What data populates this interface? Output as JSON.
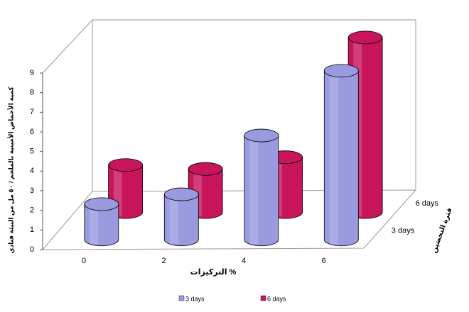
{
  "chart_data": {
    "type": "bar3d",
    "y_label": "كمية الأحماض الأمينية بالملجم / ٥٠ مل من البيئة فنادي",
    "x_label": "التركيزات %",
    "z_label": "فترة التحضين",
    "categories": [
      "0",
      "2",
      "4",
      "6"
    ],
    "series": [
      {
        "name": "3 days",
        "color": "#9a9ae0",
        "values": [
          1.8,
          2.3,
          5.3,
          8.6
        ]
      },
      {
        "name": "6 days",
        "color": "#c8145a",
        "values": [
          2.4,
          2.2,
          2.8,
          8.9
        ]
      }
    ],
    "ylim": [
      0,
      9
    ],
    "yticks": [
      0,
      1,
      2,
      3,
      4,
      5,
      6,
      7,
      8,
      9
    ],
    "legend": "bottom"
  }
}
